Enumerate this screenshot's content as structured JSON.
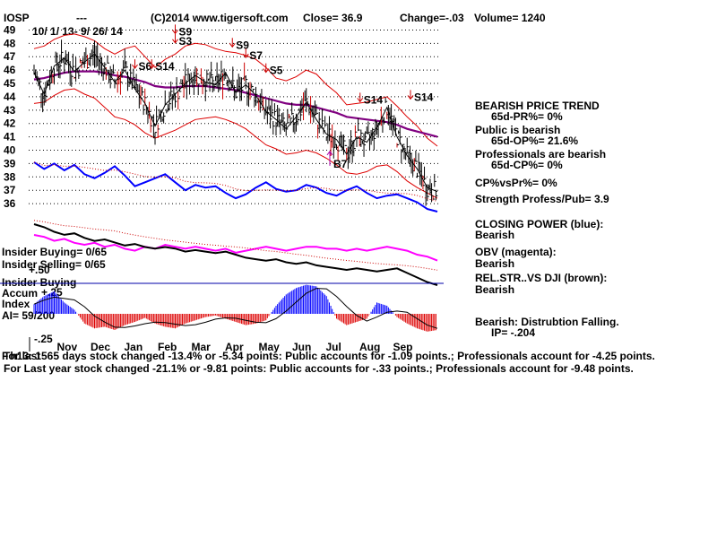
{
  "header": {
    "ticker": "IOSP",
    "dashes": "---",
    "source": "(C)2014 www.tigersoft.com",
    "close": "Close=  36.9",
    "change": "Change=-.03",
    "volume": "Volume= 1240",
    "date_range": "10/ 1/ 13-  9/ 26/ 14"
  },
  "right_panel": [
    {
      "text": "BEARISH PRICE TREND",
      "indent": false
    },
    {
      "text": "65d-PR%= 0%",
      "indent": true
    },
    {
      "text": "Public is bearish",
      "indent": false
    },
    {
      "text": "65d-OP%= 21.6%",
      "indent": true
    },
    {
      "text": "Professionals are bearish",
      "indent": false
    },
    {
      "text": "65d-CP%= 0%",
      "indent": true
    },
    {
      "text": "CP%vsPr%=  0%",
      "indent": false
    },
    {
      "text": "Strength Profess/Pub= 3.9",
      "indent": false
    },
    {
      "text": "CLOSING POWER (blue):",
      "indent": false
    },
    {
      "text": "Bearish",
      "indent": false
    },
    {
      "text": "OBV (magenta):",
      "indent": false
    },
    {
      "text": "Bearish",
      "indent": false
    },
    {
      "text": "REL.STR..VS DJI (brown):",
      "indent": false
    },
    {
      "text": "Bearish",
      "indent": false
    },
    {
      "text": "Bearish: Distrubtion Falling.",
      "indent": false
    },
    {
      "text": "IP= -.204",
      "indent": true
    }
  ],
  "left_labels": {
    "insider_buying": "Insider Buying= 0/65",
    "insider_selling": "Insider Selling= 0/65",
    "ip_axis_50": "+.50",
    "insider_buying_line": "Insider Buying",
    "accum": "Accum",
    "ip_axis_25": "+.25",
    "index": "Index",
    "ai": "AI= 59/200",
    "ip_axis_neg25": "-.25"
  },
  "footer": {
    "line1_overlap": "For last",
    "line1": "Th13: 1565 days stock changed -13.4% or -5.34 points:  Public accounts for -1.09 points.;  Professionals account for -4.25 points.",
    "line2": "For Last year stock changed -21.1% or -9.81 points:  Public accounts for -.33 points.;  Professionals account for -9.48 points."
  },
  "colors": {
    "price_bars": "#000000",
    "bands": "#dd0000",
    "ma_purple": "#800080",
    "closing_power": "#0000ff",
    "obv": "#ff00ff",
    "rel_str": "#000000",
    "accum_pos": "#0000ff",
    "accum_neg": "#dd0000",
    "dotted": "#000000",
    "insider_line": "#0000aa"
  },
  "signals": [
    {
      "label": "S9",
      "month_pos": 4.2,
      "price": 48.6
    },
    {
      "label": "S3",
      "month_pos": 4.2,
      "price": 47.9
    },
    {
      "label": "S9",
      "month_pos": 5.9,
      "price": 47.6
    },
    {
      "label": "S7",
      "month_pos": 6.3,
      "price": 46.8
    },
    {
      "label": "S5",
      "month_pos": 6.9,
      "price": 45.7
    },
    {
      "label": "S6",
      "month_pos": 3.0,
      "price": 46.0
    },
    {
      "label": "S14",
      "month_pos": 3.5,
      "price": 46.0
    },
    {
      "label": "S14",
      "month_pos": 9.7,
      "price": 43.5
    },
    {
      "label": "S14",
      "month_pos": 11.2,
      "price": 43.7
    },
    {
      "label": "B7",
      "month_pos": 8.8,
      "price": 38.7
    }
  ],
  "chart_data": {
    "type": "line",
    "title": "IOSP",
    "x_tick_labels": [
      "Nov",
      "Dec",
      "Jan",
      "Feb",
      "Mar",
      "Apr",
      "May",
      "Jun",
      "Jul",
      "Aug",
      "Sep"
    ],
    "y_tick_labels": [
      49,
      48,
      47,
      46,
      45,
      44,
      43,
      42,
      41,
      40,
      39,
      38,
      37,
      36
    ],
    "ylim": [
      35,
      49.5
    ],
    "grid": true,
    "series": [
      {
        "name": "Close",
        "x": [
          0,
          0.3,
          0.6,
          0.9,
          1.2,
          1.5,
          1.8,
          2.1,
          2.4,
          2.7,
          3.0,
          3.3,
          3.6,
          3.9,
          4.2,
          4.5,
          4.8,
          5.1,
          5.4,
          5.7,
          6.0,
          6.3,
          6.6,
          6.9,
          7.2,
          7.5,
          7.8,
          8.1,
          8.4,
          8.7,
          9.0,
          9.3,
          9.6,
          9.9,
          10.2,
          10.5,
          10.8,
          11.1,
          11.4,
          11.7,
          12.0
        ],
        "values": [
          45.8,
          44.2,
          46.3,
          46.9,
          45.9,
          46.6,
          47.2,
          46.2,
          45.1,
          46.0,
          44.6,
          43.5,
          41.8,
          43.4,
          44.2,
          45.0,
          45.6,
          45.1,
          44.9,
          45.8,
          44.3,
          44.9,
          44.1,
          42.9,
          42.3,
          41.6,
          42.5,
          43.6,
          42.3,
          41.2,
          40.8,
          39.7,
          41.0,
          40.6,
          41.7,
          43.2,
          41.0,
          39.6,
          38.6,
          37.2,
          36.9
        ]
      }
    ],
    "bands": {
      "upper": [
        47.6,
        47.8,
        48.3,
        48.6,
        48.7,
        48.5,
        48.2,
        47.6,
        47.2,
        47.6,
        47.8,
        47.0,
        46.2,
        46.8,
        47.2,
        47.8,
        48.0,
        47.9,
        47.6,
        47.4,
        47.3,
        47.1,
        46.8,
        46.2,
        45.4,
        45.2,
        45.5,
        46.0,
        45.7,
        44.9,
        44.3,
        43.4,
        43.5,
        43.6,
        43.8,
        44.0,
        43.3,
        42.5,
        41.8,
        40.9,
        40.3
      ],
      "lower": [
        43.5,
        43.6,
        44.1,
        44.5,
        44.6,
        44.2,
        43.9,
        43.2,
        42.5,
        42.3,
        41.9,
        41.3,
        40.9,
        41.2,
        41.5,
        41.9,
        42.3,
        42.4,
        42.5,
        42.3,
        42.0,
        41.6,
        41.0,
        40.4,
        40.1,
        39.7,
        39.8,
        40.0,
        39.8,
        39.4,
        38.9,
        38.3,
        38.2,
        38.4,
        38.8,
        38.9,
        38.4,
        37.7,
        37.2,
        36.8,
        36.4
      ]
    },
    "moving_average": [
      45.3,
      45.4,
      45.6,
      45.8,
      45.9,
      45.9,
      45.9,
      45.8,
      45.6,
      45.5,
      45.3,
      45.1,
      44.8,
      44.7,
      44.7,
      44.8,
      44.8,
      44.8,
      44.7,
      44.6,
      44.5,
      44.3,
      44.1,
      43.9,
      43.7,
      43.5,
      43.4,
      43.4,
      43.2,
      43.0,
      42.8,
      42.5,
      42.4,
      42.3,
      42.2,
      42.1,
      41.9,
      41.6,
      41.4,
      41.2,
      41.0
    ],
    "closing_power": {
      "values": [
        39.1,
        38.6,
        39.0,
        38.5,
        38.9,
        38.2,
        37.9,
        38.3,
        38.8,
        38.1,
        37.3,
        37.6,
        37.9,
        38.2,
        37.6,
        37.0,
        37.4,
        37.2,
        37.3,
        36.8,
        36.4,
        36.7,
        37.2,
        37.6,
        37.1,
        36.9,
        37.0,
        37.4,
        37.2,
        36.8,
        36.6,
        37.0,
        37.3,
        36.8,
        36.4,
        36.6,
        36.7,
        36.4,
        36.1,
        35.6,
        35.4
      ]
    },
    "obv": {
      "values": [
        35.9,
        35.8,
        35.6,
        35.7,
        35.5,
        35.4,
        35.5,
        35.3,
        35.4,
        35.2,
        35.1,
        35.3,
        35.2,
        35.4,
        35.3,
        35.2,
        35.3,
        35.2,
        35.1,
        35.2,
        35.0,
        35.1,
        35.2,
        35.3,
        35.2,
        35.1,
        35.2,
        35.3,
        35.3,
        35.2,
        35.2,
        35.1,
        35.2,
        35.1,
        35.2,
        35.3,
        35.2,
        35.1,
        34.9,
        34.8,
        34.6
      ]
    },
    "rel_str": {
      "values": [
        35.8,
        35.6,
        35.3,
        35.1,
        35.2,
        34.9,
        34.7,
        34.8,
        34.6,
        34.4,
        34.5,
        34.3,
        34.2,
        34.3,
        34.2,
        34.0,
        34.1,
        34.0,
        33.9,
        34.0,
        33.8,
        33.6,
        33.5,
        33.4,
        33.5,
        33.3,
        33.2,
        33.3,
        33.1,
        33.0,
        32.9,
        32.8,
        32.9,
        32.8,
        32.7,
        32.8,
        32.9,
        32.6,
        32.3,
        32.0,
        31.8
      ]
    },
    "accum_index": {
      "values": [
        0.12,
        0.22,
        0.28,
        0.14,
        0.05,
        -0.12,
        -0.18,
        -0.16,
        -0.2,
        -0.14,
        -0.1,
        -0.05,
        -0.12,
        -0.16,
        -0.18,
        -0.12,
        -0.08,
        -0.04,
        -0.02,
        -0.06,
        -0.1,
        -0.14,
        -0.12,
        -0.08,
        0.1,
        0.24,
        0.32,
        0.36,
        0.34,
        0.22,
        -0.06,
        -0.14,
        -0.1,
        -0.06,
        0.14,
        0.1,
        -0.04,
        -0.12,
        -0.18,
        -0.22,
        -0.2
      ]
    }
  }
}
